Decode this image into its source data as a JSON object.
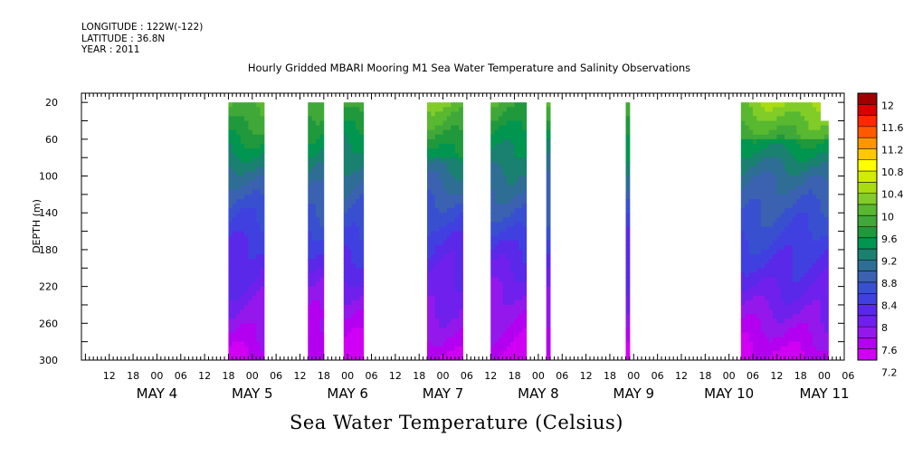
{
  "header": {
    "longitude": "LONGITUDE : 122W(-122)",
    "latitude": "LATITUDE : 36.8N",
    "year": "YEAR : 2011"
  },
  "chart_data": {
    "type": "heatmap",
    "title": "Hourly Gridded MBARI Mooring M1 Sea Water Temperature and Salinity Observations",
    "variable_label": "Sea Water Temperature (Celsius)",
    "ylabel": "DEPTH (m)",
    "xlabel": "",
    "y_axis": {
      "ticks": [
        20,
        60,
        100,
        140,
        180,
        220,
        260,
        300
      ],
      "range": [
        10,
        300
      ],
      "inverted": true
    },
    "x_axis": {
      "hour_tick_labels": [
        "12",
        "18",
        "00",
        "06",
        "12",
        "18",
        "00",
        "06",
        "12",
        "18",
        "00",
        "06",
        "12",
        "18",
        "00",
        "06",
        "12",
        "18",
        "00",
        "06",
        "12",
        "18",
        "00",
        "06",
        "12",
        "18",
        "00",
        "06",
        "12",
        "18",
        "00",
        "06"
      ],
      "day_labels": [
        {
          "text": "MAY  4",
          "day": 4
        },
        {
          "text": "MAY  5",
          "day": 5
        },
        {
          "text": "MAY  6",
          "day": 6
        },
        {
          "text": "MAY  7",
          "day": 7
        },
        {
          "text": "MAY  8",
          "day": 8
        },
        {
          "text": "MAY  9",
          "day": 9
        },
        {
          "text": "MAY 10",
          "day": 10
        },
        {
          "text": "MAY 11",
          "day": 11
        }
      ],
      "range_hours_from_may4_00": [
        -19,
        173
      ]
    },
    "colorbar": {
      "levels": [
        "12",
        "11.6",
        "11.2",
        "10.8",
        "10.4",
        "10",
        "9.6",
        "9.2",
        "8.8",
        "8.4",
        "8",
        "7.6",
        "7.2"
      ],
      "colors": [
        "#a00000",
        "#d80000",
        "#ff2800",
        "#ff5a00",
        "#ff9600",
        "#ffc800",
        "#ffff00",
        "#d2ec00",
        "#a8dc10",
        "#82cc28",
        "#58b830",
        "#40a838",
        "#20983c",
        "#009650",
        "#1a8070",
        "#2e6e94",
        "#3a62b0",
        "#3850d0",
        "#4040e0",
        "#5a28e8",
        "#7020ec",
        "#9418ec",
        "#b400f0",
        "#d000f4"
      ]
    },
    "segments": [
      {
        "start": "May 4 18:00",
        "end": "May 5 03:00",
        "top_depth": 20
      },
      {
        "start": "May 5 14:00",
        "end": "May 5 18:00",
        "top_depth": 20
      },
      {
        "start": "May 5 23:00",
        "end": "May 6 04:00",
        "top_depth": 20
      },
      {
        "start": "May 6 20:00",
        "end": "May 7 05:00",
        "top_depth": 20
      },
      {
        "start": "May 7 12:00",
        "end": "May 7 21:00",
        "top_depth": 20
      },
      {
        "start": "May 8 02:00",
        "end": "May 8 03:00",
        "top_depth": 20
      },
      {
        "start": "May 8 22:00",
        "end": "May 8 23:00",
        "top_depth": 20
      },
      {
        "start": "May 10 03:00",
        "end": "May 10 23:00",
        "top_depth": 20
      },
      {
        "start": "May 10 23:00",
        "end": "May 11 01:00",
        "top_depth": 40
      }
    ]
  }
}
